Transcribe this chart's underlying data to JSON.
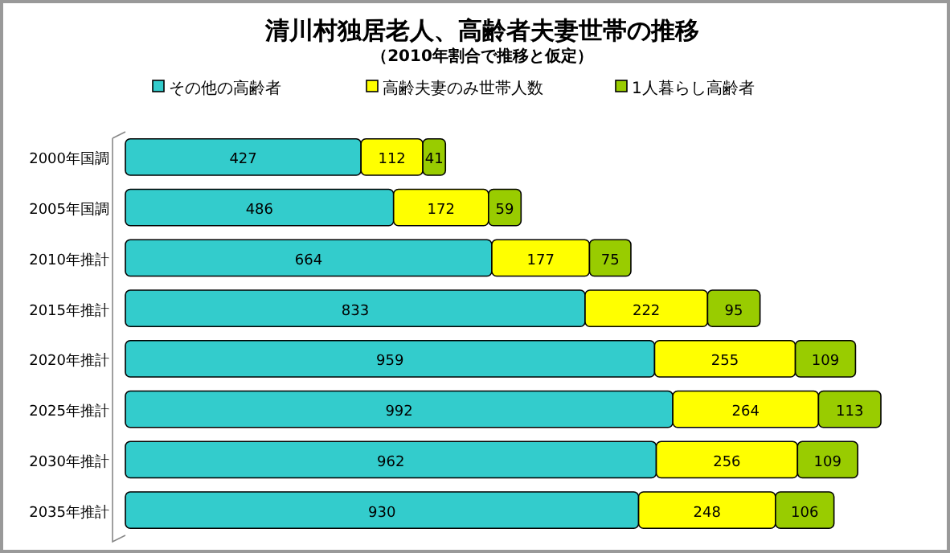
{
  "chart_data": {
    "type": "bar",
    "orientation": "horizontal",
    "stacked": true,
    "title": "清川村独居老人、高齢者夫妻世帯の推移",
    "subtitle": "（2010年割合で推移と仮定）",
    "categories": [
      "2000年国調",
      "2005年国調",
      "2010年推計",
      "2015年推計",
      "2020年推計",
      "2025年推計",
      "2030年推計",
      "2035年推計"
    ],
    "series": [
      {
        "name": "その他の高齢者",
        "color": "#33cccc",
        "values": [
          427,
          486,
          664,
          833,
          959,
          992,
          962,
          930
        ]
      },
      {
        "name": "高齢夫妻のみ世帯人数",
        "color": "#ffff00",
        "values": [
          112,
          172,
          177,
          222,
          255,
          264,
          256,
          248
        ]
      },
      {
        "name": "1人暮らし高齢者",
        "color": "#99cc00",
        "values": [
          41,
          59,
          75,
          95,
          109,
          113,
          109,
          106
        ]
      }
    ],
    "data_labels": true,
    "legend": "top"
  }
}
